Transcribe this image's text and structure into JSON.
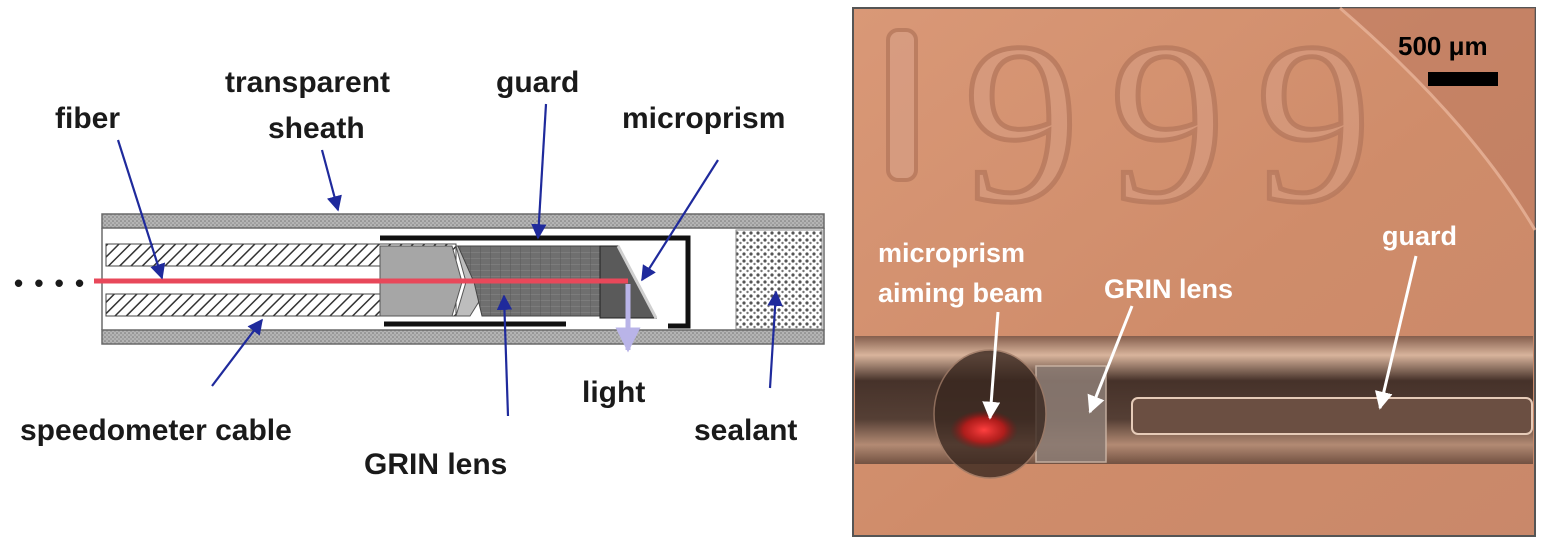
{
  "schematic": {
    "labels": {
      "fiber": "fiber",
      "sheath_line1": "transparent",
      "sheath_line2": "sheath",
      "guard": "guard",
      "microprism": "microprism",
      "speedometer_cable": "speedometer cable",
      "grin_lens": "GRIN lens",
      "light": "light",
      "sealant": "sealant",
      "dots": "• • • •"
    },
    "colors": {
      "arrow": "#1f2a9c",
      "fiber_beam": "#e8485a",
      "light_arrow": "#b9b4e8",
      "sheath": "#a8a8a8",
      "guard": "#111111"
    }
  },
  "photo": {
    "labels": {
      "scale_bar": "500 μm",
      "microprism_line1": "microprism",
      "microprism_line2": "aiming beam",
      "grin_lens": "GRIN lens",
      "guard": "guard",
      "coin_year": "1999"
    },
    "colors": {
      "background": "#d4926f",
      "beam": "#e02020"
    }
  }
}
